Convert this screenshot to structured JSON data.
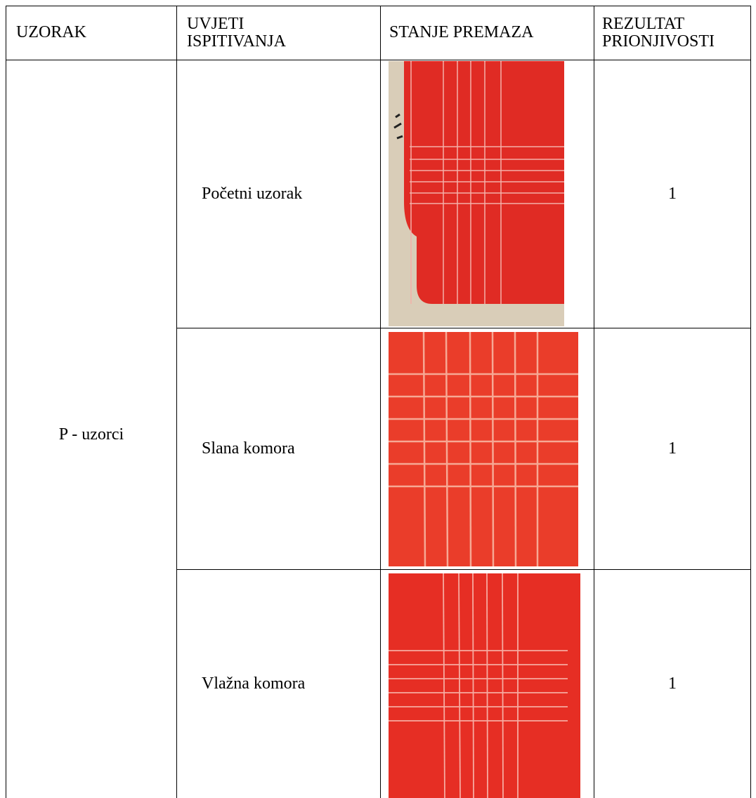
{
  "table": {
    "header": [
      "UZORAK",
      "UVJETI ISPITIVANJA",
      "STANJE PREMAZA",
      "REZULTAT PRIONJIVOSTI"
    ],
    "sample": "P - uzorci",
    "rows": [
      [
        "Početni uzorak",
        1
      ],
      [
        "Slana komora",
        1
      ],
      [
        "Vlažna komora",
        1
      ]
    ]
  }
}
